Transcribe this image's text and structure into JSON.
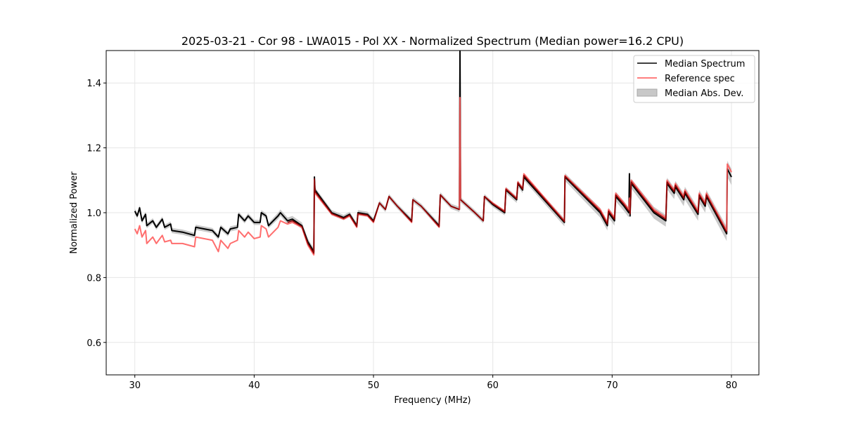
{
  "chart_data": {
    "type": "line",
    "title": "2025-03-21 - Cor 98 - LWA015 - Pol XX - Normalized Spectrum (Median power=16.2 CPU)",
    "xlabel": "Frequency (MHz)",
    "ylabel": "Normalized Power",
    "xlim": [
      27.6,
      82.3
    ],
    "ylim": [
      0.5,
      1.5
    ],
    "xticks": [
      30,
      40,
      50,
      60,
      70,
      80
    ],
    "xtick_labels": [
      "30",
      "40",
      "50",
      "60",
      "70",
      "80"
    ],
    "yticks": [
      0.6,
      0.8,
      1.0,
      1.2,
      1.4
    ],
    "ytick_labels": [
      "0.6",
      "0.8",
      "1.0",
      "1.2",
      "1.4"
    ],
    "grid": true,
    "legend_position": "top-right",
    "legend": [
      "Median Spectrum",
      "Reference spec",
      "Median Abs. Dev."
    ],
    "colors": {
      "median": "#000000",
      "reference": "#ff5555",
      "mad": "#b0b0b0",
      "overlap": "#8b0000"
    },
    "x": [
      30.0,
      30.2,
      30.4,
      30.6,
      30.9,
      31.0,
      31.5,
      31.8,
      32.3,
      32.5,
      33.0,
      33.1,
      34.0,
      35.0,
      35.1,
      36.5,
      37.0,
      37.2,
      37.8,
      38.0,
      38.6,
      38.7,
      39.2,
      39.5,
      40.0,
      40.5,
      40.6,
      41.0,
      41.2,
      42.0,
      42.2,
      42.8,
      43.2,
      44.0,
      44.5,
      45.0,
      45.05,
      45.1,
      46.5,
      47.5,
      48.0,
      48.6,
      48.7,
      49.5,
      50.0,
      50.5,
      51.0,
      51.3,
      52.0,
      53.2,
      53.3,
      54.0,
      55.5,
      55.6,
      56.5,
      57.2,
      57.25,
      57.3,
      58.5,
      59.2,
      59.3,
      60.0,
      61.0,
      61.1,
      62.0,
      62.1,
      62.5,
      62.6,
      66.0,
      66.05,
      69.0,
      69.6,
      69.7,
      70.2,
      70.3,
      71.0,
      71.4,
      71.45,
      71.5,
      71.6,
      73.5,
      74.5,
      74.6,
      75.2,
      75.3,
      76.0,
      76.1,
      77.2,
      77.3,
      77.8,
      77.9,
      79.6,
      79.65,
      80.0
    ],
    "series": [
      {
        "name": "Median Spectrum",
        "values": [
          1.005,
          0.99,
          1.015,
          0.975,
          0.995,
          0.96,
          0.975,
          0.955,
          0.98,
          0.955,
          0.965,
          0.945,
          0.94,
          0.93,
          0.955,
          0.945,
          0.925,
          0.955,
          0.935,
          0.95,
          0.955,
          0.995,
          0.975,
          0.99,
          0.97,
          0.97,
          1.0,
          0.99,
          0.96,
          0.99,
          1.0,
          0.975,
          0.98,
          0.96,
          0.91,
          0.88,
          1.11,
          1.07,
          1.0,
          0.985,
          0.995,
          0.96,
          1.0,
          0.995,
          0.975,
          1.03,
          1.01,
          1.05,
          1.02,
          0.975,
          1.04,
          1.02,
          0.96,
          1.055,
          1.02,
          1.01,
          1.5,
          1.04,
          1.0,
          0.975,
          1.05,
          1.025,
          1.0,
          1.07,
          1.04,
          1.09,
          1.07,
          1.11,
          0.97,
          1.11,
          1.0,
          0.96,
          1.0,
          0.975,
          1.05,
          1.02,
          1.0,
          1.12,
          0.99,
          1.09,
          1.0,
          0.975,
          1.09,
          1.06,
          1.08,
          1.04,
          1.06,
          0.995,
          1.05,
          1.02,
          1.05,
          0.935,
          1.135,
          1.11
        ]
      },
      {
        "name": "Reference spec",
        "values": [
          0.95,
          0.935,
          0.96,
          0.925,
          0.945,
          0.905,
          0.925,
          0.905,
          0.93,
          0.91,
          0.915,
          0.905,
          0.905,
          0.895,
          0.925,
          0.915,
          0.88,
          0.915,
          0.89,
          0.905,
          0.915,
          0.945,
          0.925,
          0.94,
          0.92,
          0.925,
          0.96,
          0.95,
          0.925,
          0.955,
          0.975,
          0.965,
          0.97,
          0.955,
          0.9,
          0.87,
          1.1,
          1.06,
          0.995,
          0.98,
          0.99,
          0.955,
          0.995,
          0.99,
          0.97,
          1.03,
          1.01,
          1.05,
          1.02,
          0.97,
          1.04,
          1.02,
          0.955,
          1.055,
          1.02,
          1.01,
          1.355,
          1.04,
          1.0,
          0.975,
          1.05,
          1.03,
          1.005,
          1.075,
          1.045,
          1.095,
          1.075,
          1.12,
          0.975,
          1.115,
          1.01,
          0.97,
          1.01,
          0.985,
          1.06,
          1.03,
          1.01,
          1.045,
          1.0,
          1.1,
          1.01,
          0.985,
          1.1,
          1.07,
          1.09,
          1.05,
          1.07,
          1.005,
          1.06,
          1.03,
          1.06,
          0.945,
          1.15,
          1.125
        ]
      },
      {
        "name": "Median Abs. Dev.",
        "values": [
          0.008,
          0.008,
          0.008,
          0.008,
          0.008,
          0.008,
          0.008,
          0.008,
          0.008,
          0.008,
          0.008,
          0.008,
          0.008,
          0.008,
          0.008,
          0.008,
          0.008,
          0.008,
          0.008,
          0.008,
          0.008,
          0.008,
          0.008,
          0.008,
          0.008,
          0.008,
          0.008,
          0.008,
          0.008,
          0.01,
          0.01,
          0.01,
          0.01,
          0.01,
          0.01,
          0.01,
          0.01,
          0.008,
          0.008,
          0.008,
          0.008,
          0.008,
          0.008,
          0.008,
          0.008,
          0.008,
          0.008,
          0.008,
          0.008,
          0.008,
          0.008,
          0.008,
          0.008,
          0.008,
          0.008,
          0.008,
          0.008,
          0.008,
          0.008,
          0.008,
          0.008,
          0.008,
          0.008,
          0.01,
          0.01,
          0.01,
          0.01,
          0.01,
          0.012,
          0.012,
          0.015,
          0.015,
          0.015,
          0.015,
          0.015,
          0.015,
          0.015,
          0.015,
          0.015,
          0.015,
          0.018,
          0.018,
          0.018,
          0.018,
          0.018,
          0.02,
          0.02,
          0.02,
          0.02,
          0.02,
          0.02,
          0.022,
          0.025,
          0.025
        ]
      }
    ]
  }
}
